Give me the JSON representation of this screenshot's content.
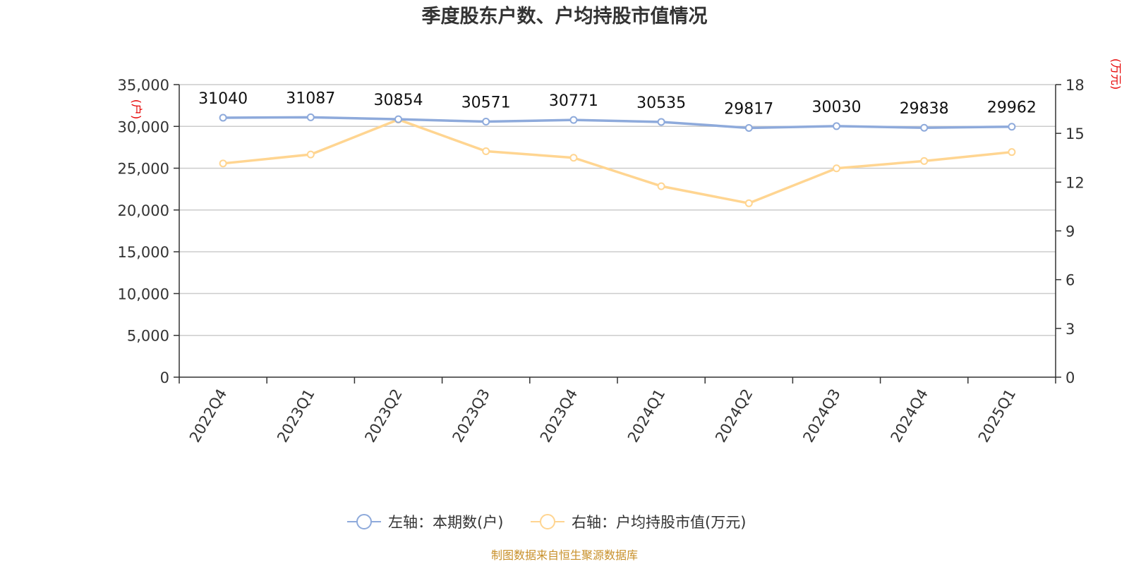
{
  "chart_data": {
    "type": "line",
    "title": "季度股东户数、户均持股市值情况",
    "categories": [
      "2022Q4",
      "2023Q1",
      "2023Q2",
      "2023Q3",
      "2023Q4",
      "2024Q1",
      "2024Q2",
      "2024Q3",
      "2024Q4",
      "2025Q1"
    ],
    "y_left": {
      "unit": "(户)",
      "range": [
        0,
        35000
      ],
      "ticks": [
        "0",
        "5,000",
        "10,000",
        "15,000",
        "20,000",
        "25,000",
        "30,000",
        "35,000"
      ],
      "tick_values": [
        0,
        5000,
        10000,
        15000,
        20000,
        25000,
        30000,
        35000
      ]
    },
    "y_right": {
      "unit": "(万元)",
      "range": [
        0,
        18
      ],
      "ticks": [
        "0",
        "3",
        "6",
        "9",
        "12",
        "15",
        "18"
      ],
      "tick_values": [
        0,
        3,
        6,
        9,
        12,
        15,
        18
      ]
    },
    "series": [
      {
        "name": "左轴：本期数(户)",
        "axis": "left",
        "color": "#8eaadb",
        "values": [
          31040,
          31087,
          30854,
          30571,
          30771,
          30535,
          29817,
          30030,
          29838,
          29962
        ],
        "labels": [
          "31040",
          "31087",
          "30854",
          "30571",
          "30771",
          "30535",
          "29817",
          "30030",
          "29838",
          "29962"
        ]
      },
      {
        "name": "右轴：户均持股市值(万元)",
        "axis": "right",
        "color": "#ffd591",
        "values": [
          13.15,
          13.7,
          15.85,
          13.9,
          13.5,
          11.75,
          10.7,
          12.85,
          13.3,
          13.85
        ]
      }
    ],
    "grid": true,
    "legend_position": "bottom"
  },
  "source": "制图数据来自恒生聚源数据库"
}
